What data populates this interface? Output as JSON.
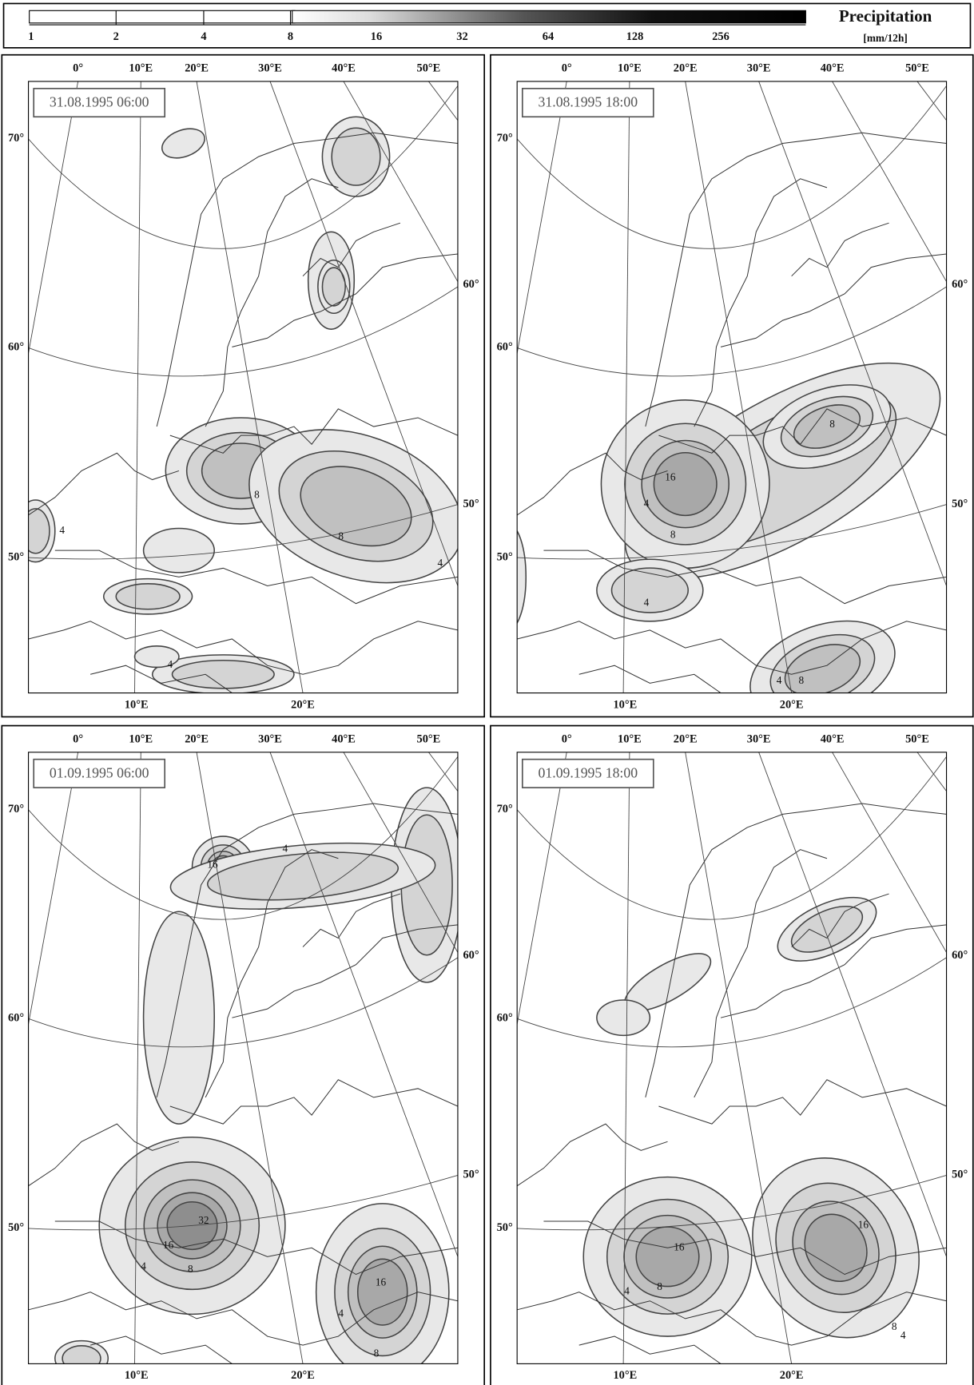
{
  "legend": {
    "title": "Precipitation",
    "unit": "[mm/12h]",
    "levels": [
      "1",
      "2",
      "4",
      "8",
      "16",
      "32",
      "64",
      "128",
      "256"
    ]
  },
  "panels": [
    {
      "label": "31.08.1995 06:00",
      "top_lon": [
        "0°",
        "10°E",
        "20°E",
        "30°E",
        "40°E",
        "50°E"
      ],
      "left_lat": [
        "70°",
        "60°",
        "50°"
      ],
      "right_lat": [
        "60°",
        "50°"
      ],
      "bottom_lon": [
        "10°E",
        "20°E"
      ],
      "contour_labels": [
        "8",
        "8",
        "4",
        "4",
        "4"
      ]
    },
    {
      "label": "31.08.1995 18:00",
      "top_lon": [
        "0°",
        "10°E",
        "20°E",
        "30°E",
        "40°E",
        "50°E"
      ],
      "left_lat": [
        "70°",
        "60°",
        "50°"
      ],
      "right_lat": [
        "60°",
        "50°"
      ],
      "bottom_lon": [
        "10°E",
        "20°E"
      ],
      "contour_labels": [
        "16",
        "8",
        "8",
        "4",
        "4",
        "4",
        "8"
      ]
    },
    {
      "label": "01.09.1995 06:00",
      "top_lon": [
        "0°",
        "10°E",
        "20°E",
        "30°E",
        "40°E",
        "50°E"
      ],
      "left_lat": [
        "70°",
        "60°",
        "50°"
      ],
      "right_lat": [
        "60°",
        "50°"
      ],
      "bottom_lon": [
        "10°E",
        "20°E"
      ],
      "contour_labels": [
        "16",
        "4",
        "32",
        "16",
        "8",
        "4",
        "16",
        "8",
        "4"
      ]
    },
    {
      "label": "01.09.1995 18:00",
      "top_lon": [
        "0°",
        "10°E",
        "20°E",
        "30°E",
        "40°E",
        "50°E"
      ],
      "left_lat": [
        "70°",
        "60°",
        "50°"
      ],
      "right_lat": [
        "60°",
        "50°"
      ],
      "bottom_lon": [
        "10°E",
        "20°E"
      ],
      "contour_labels": [
        "16",
        "8",
        "4",
        "16",
        "8",
        "4"
      ]
    }
  ]
}
